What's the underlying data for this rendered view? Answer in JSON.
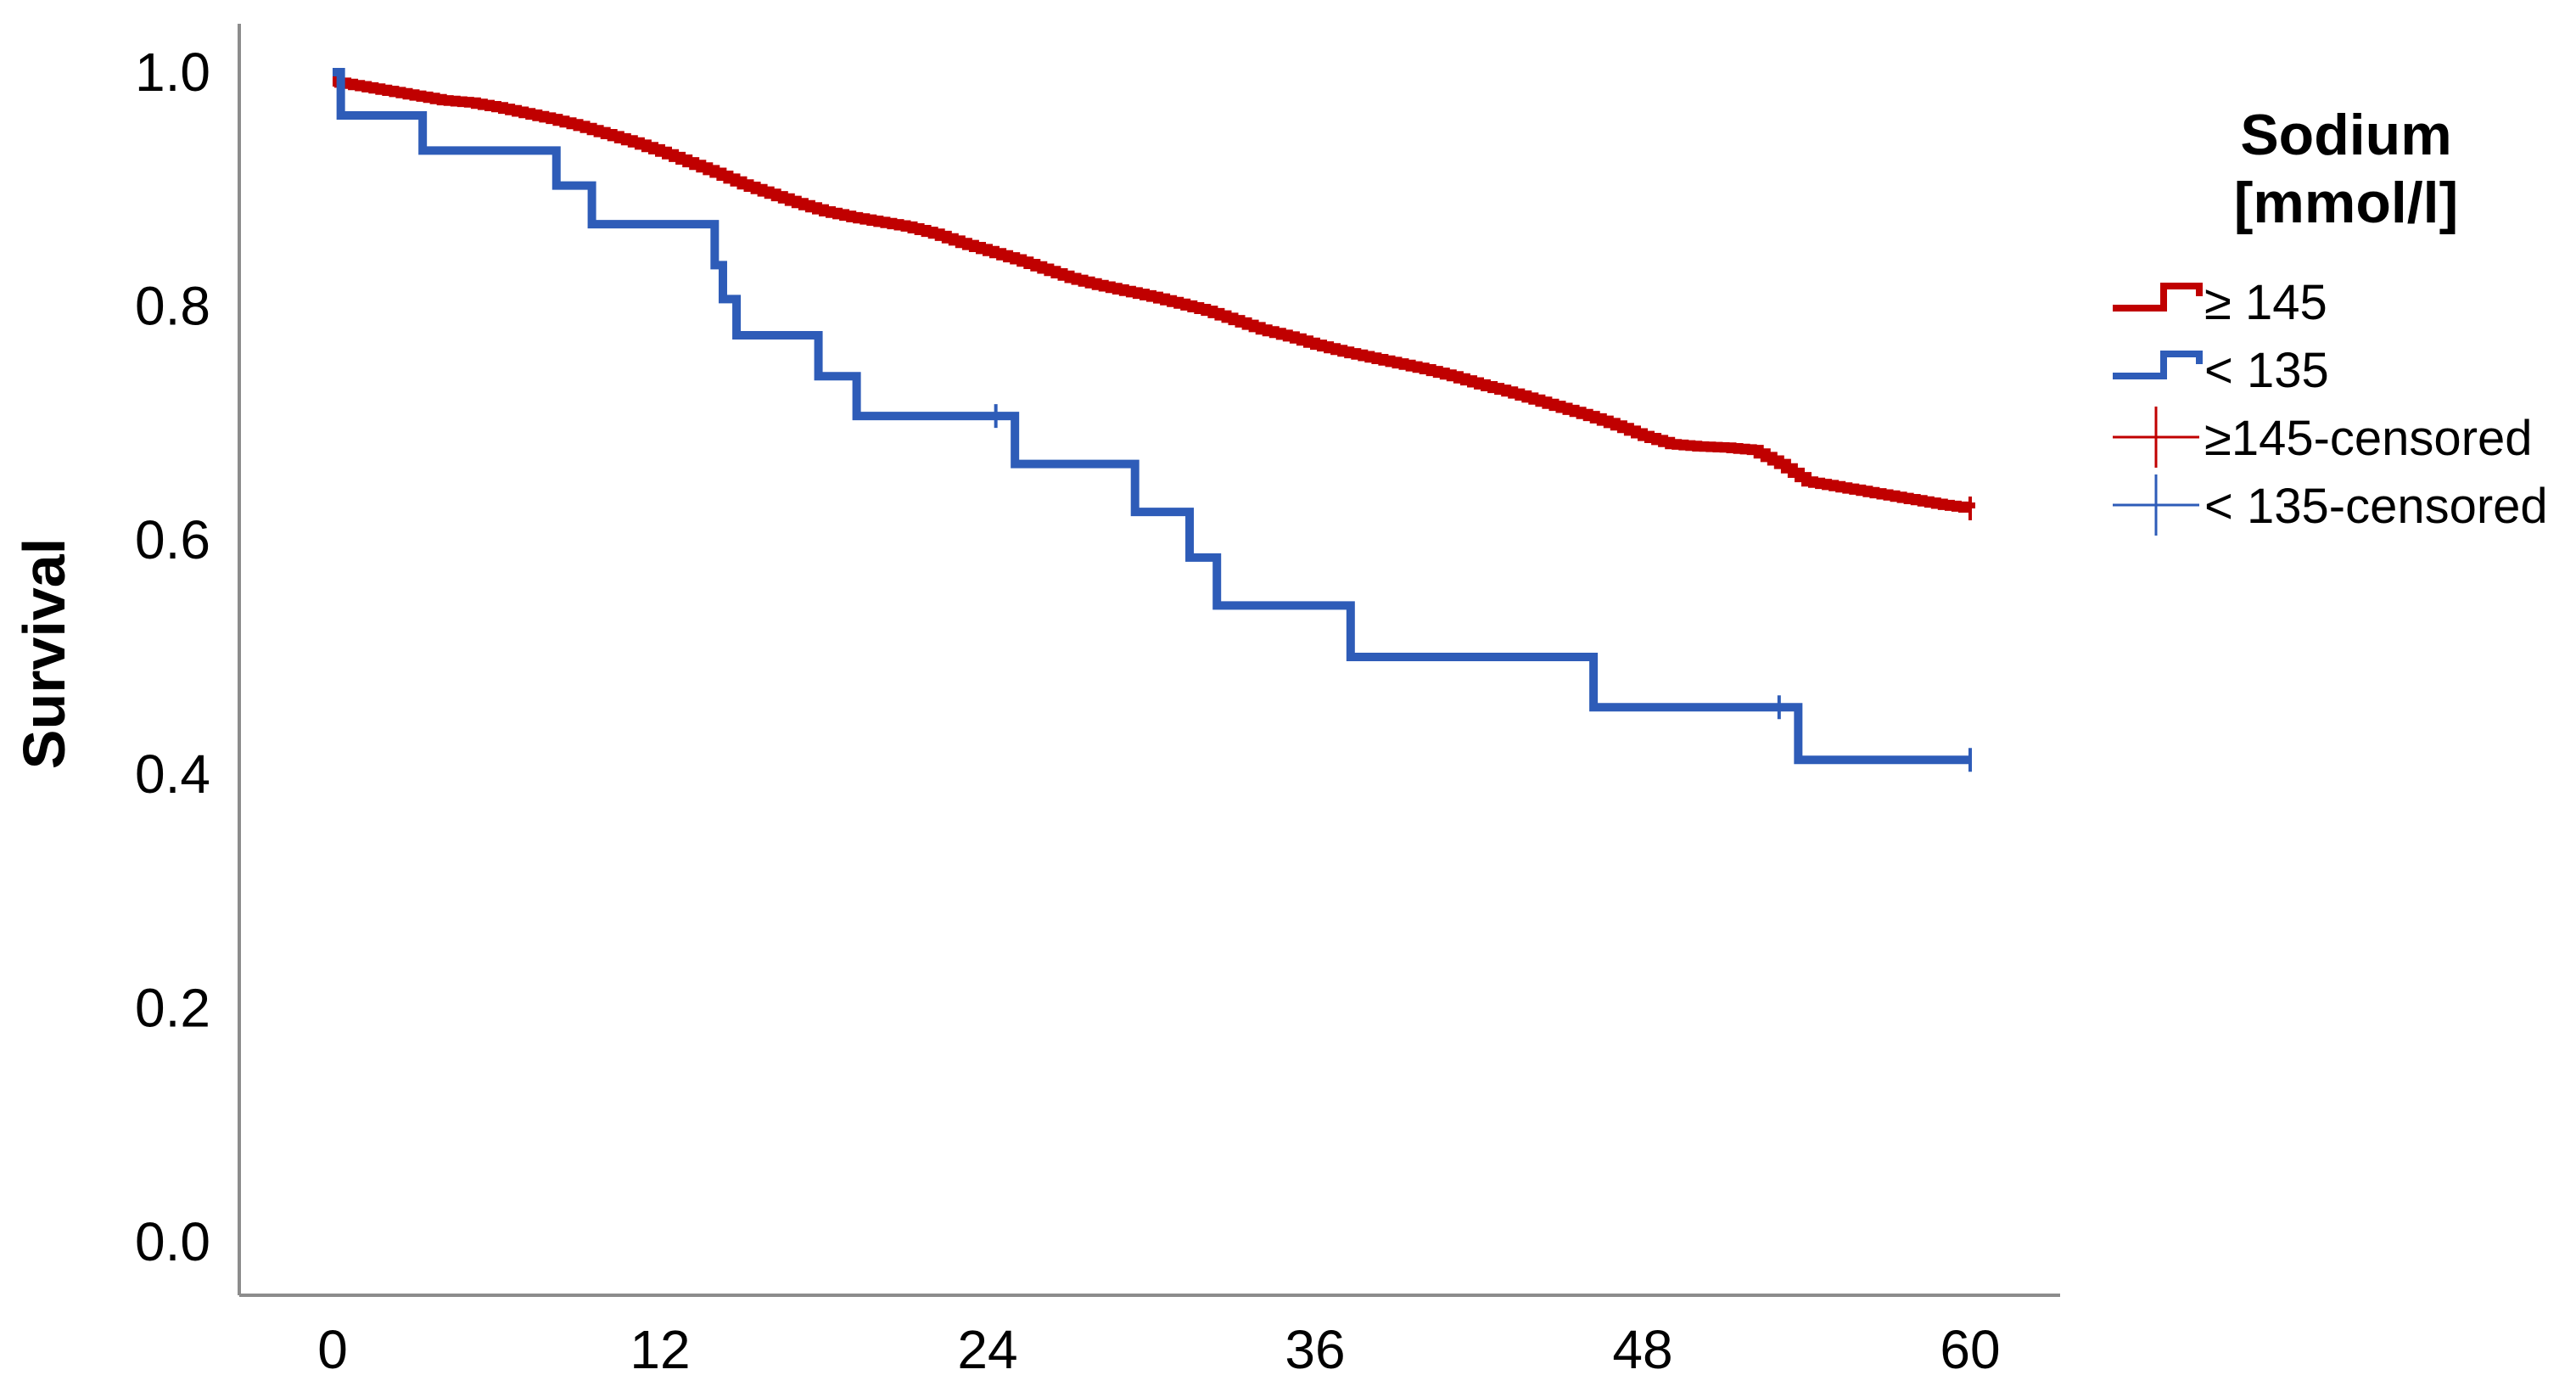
{
  "chart_data": {
    "type": "line",
    "title": "",
    "xlabel": "",
    "ylabel": "Survival",
    "xlim": [
      0,
      60
    ],
    "ylim": [
      0,
      1
    ],
    "x_ticks": [
      "0",
      "12",
      "24",
      "36",
      "48",
      "60"
    ],
    "y_ticks": [
      "0.0",
      "0.2",
      "0.4",
      "0.6",
      "0.8",
      "1.0"
    ],
    "grid": false,
    "legend": {
      "title": "Sodium [mmol/l]",
      "title_lines": [
        "Sodium",
        "[mmol/l]"
      ],
      "position": "right",
      "entries": [
        {
          "label": "≥ 145",
          "kind": "line",
          "color": "#C00000"
        },
        {
          "label": "< 135",
          "kind": "line",
          "color": "#2E5CB8"
        },
        {
          "label": "≥145-censored",
          "kind": "cross",
          "color": "#C00000"
        },
        {
          "label": "< 135-censored",
          "kind": "cross",
          "color": "#2E5CB8"
        }
      ]
    },
    "series": [
      {
        "name": "≥ 145",
        "color": "#C00000",
        "style": "smooth-step",
        "x": [
          0,
          1,
          2,
          3,
          4,
          5,
          6,
          7,
          8,
          9,
          10,
          11,
          12,
          13,
          14,
          15,
          16,
          17,
          18,
          19,
          20,
          21,
          22,
          23,
          24,
          25,
          26,
          27,
          28,
          29,
          30,
          31,
          32,
          33,
          34,
          35,
          36,
          37,
          38,
          39,
          40,
          41,
          42,
          43,
          44,
          45,
          46,
          47,
          48,
          49,
          50,
          51,
          52,
          53,
          54,
          55,
          56,
          57,
          58,
          59,
          60
        ],
        "y": [
          0.992,
          0.988,
          0.984,
          0.98,
          0.976,
          0.974,
          0.97,
          0.965,
          0.96,
          0.954,
          0.947,
          0.94,
          0.932,
          0.923,
          0.914,
          0.904,
          0.896,
          0.888,
          0.881,
          0.876,
          0.872,
          0.868,
          0.862,
          0.854,
          0.847,
          0.84,
          0.832,
          0.824,
          0.818,
          0.813,
          0.808,
          0.802,
          0.796,
          0.788,
          0.78,
          0.774,
          0.767,
          0.761,
          0.756,
          0.751,
          0.746,
          0.74,
          0.733,
          0.727,
          0.72,
          0.713,
          0.706,
          0.698,
          0.689,
          0.682,
          0.68,
          0.679,
          0.677,
          0.665,
          0.65,
          0.646,
          0.642,
          0.638,
          0.634,
          0.63,
          0.627
        ],
        "censored_x": [
          60
        ]
      },
      {
        "name": "< 135",
        "color": "#2E5CB8",
        "style": "step",
        "x": [
          0,
          0.3,
          3.3,
          8.2,
          9.5,
          14.0,
          14.3,
          14.8,
          17.8,
          19.2,
          25.0,
          29.4,
          31.4,
          32.4,
          37.3,
          46.2,
          53.7,
          60
        ],
        "y": [
          1.0,
          0.963,
          0.933,
          0.903,
          0.87,
          0.835,
          0.806,
          0.775,
          0.74,
          0.706,
          0.665,
          0.624,
          0.585,
          0.544,
          0.5,
          0.457,
          0.412,
          0.412
        ],
        "censored_x": [
          24.3,
          53.0,
          60
        ]
      }
    ]
  }
}
